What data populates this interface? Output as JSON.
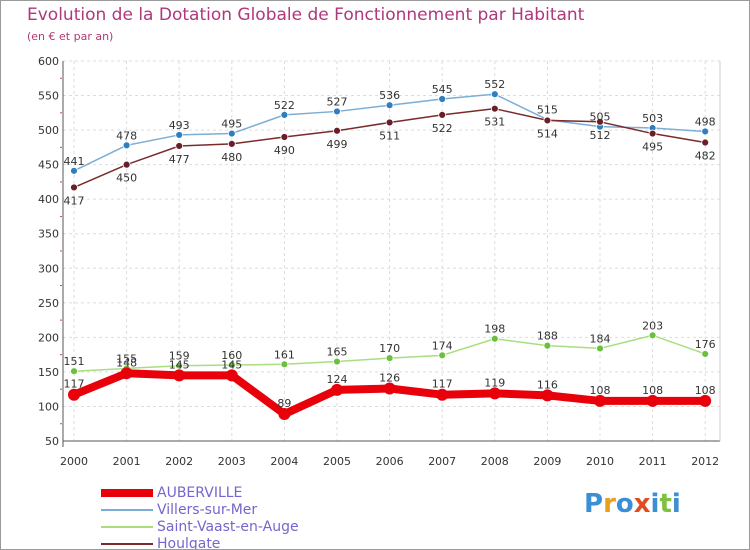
{
  "title": "Evolution de la Dotation Globale de Fonctionnement par Habitant",
  "subtitle": "(en € et par an)",
  "logo": {
    "text": "Proxiti",
    "colors": [
      "#3a8fd6",
      "#e8a020",
      "#3a8fd6",
      "#e04d20",
      "#3a8fd6",
      "#7fc040",
      "#3a8fd6"
    ]
  },
  "chart_data": {
    "type": "line",
    "x": [
      "2000",
      "2001",
      "2002",
      "2003",
      "2004",
      "2005",
      "2006",
      "2007",
      "2008",
      "2009",
      "2010",
      "2011",
      "2012"
    ],
    "yticks": [
      "50",
      "100",
      "150",
      "200",
      "250",
      "300",
      "350",
      "400",
      "450",
      "500",
      "550",
      "600"
    ],
    "ylim": [
      50,
      600
    ],
    "grid": true,
    "legend_position": "bottom-left",
    "series": [
      {
        "name": "AUBERVILLE",
        "color": "#e8000b",
        "values": [
          117,
          148,
          145,
          145,
          89,
          124,
          126,
          117,
          119,
          116,
          108,
          108,
          108
        ]
      },
      {
        "name": "Villers-sur-Mer",
        "color": "#7aaed6",
        "marker": "#2f7fc0",
        "values": [
          441,
          478,
          493,
          495,
          522,
          527,
          536,
          545,
          552,
          515,
          505,
          503,
          498
        ]
      },
      {
        "name": "Saint-Vaast-en-Auge",
        "color": "#a8de80",
        "marker": "#6cc040",
        "values": [
          151,
          155,
          159,
          160,
          161,
          165,
          170,
          174,
          198,
          188,
          184,
          203,
          176
        ]
      },
      {
        "name": "Houlgate",
        "color": "#7a2b2b",
        "marker": "#6a1f28",
        "values": [
          417,
          450,
          477,
          480,
          490,
          499,
          511,
          522,
          531,
          514,
          512,
          495,
          482
        ]
      }
    ]
  }
}
